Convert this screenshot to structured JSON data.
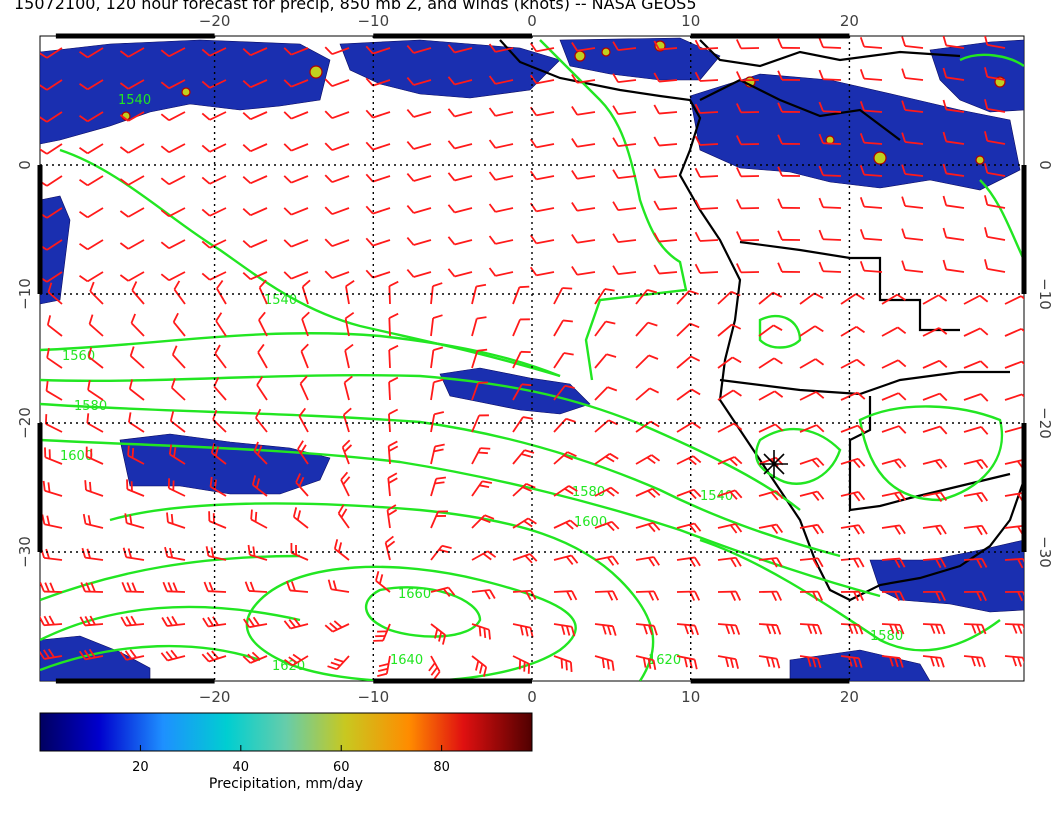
{
  "title": "15072100, 120 hour forecast for precip, 850 mb Z, and winds (knots) -- NASA GEOS5",
  "map": {
    "lon_range": [
      -31,
      31
    ],
    "lat_range": [
      10,
      -40
    ],
    "lon_ticks": [
      "−20",
      "−10",
      "0",
      "10",
      "20"
    ],
    "lon_tick_values": [
      -20,
      -10,
      0,
      10,
      20
    ],
    "lat_ticks": [
      "0",
      "−10",
      "−20",
      "−30"
    ],
    "lat_tick_values": [
      0,
      -10,
      -20,
      -30
    ],
    "contour_labels": [
      "1540",
      "1560",
      "1580",
      "1600",
      "1620",
      "1640",
      "1660"
    ],
    "contour_color": "#22e622",
    "barb_color": "#ff1a1a",
    "grid": "dotted",
    "marker": "storm-symbol"
  },
  "colorbar": {
    "label": "Precipitation, mm/day",
    "ticks": [
      "20",
      "40",
      "60",
      "80"
    ],
    "tick_values": [
      20,
      40,
      60,
      80
    ],
    "range": [
      0,
      98
    ],
    "colors": [
      "#000080",
      "#0000cd",
      "#1e90ff",
      "#00ced1",
      "#66cdaa",
      "#c0d020",
      "#ffa500",
      "#ff4500",
      "#b00000",
      "#600000"
    ]
  }
}
